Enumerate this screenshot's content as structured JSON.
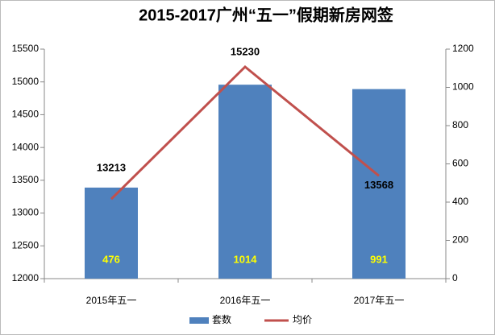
{
  "chart_data": {
    "type": "bar_line",
    "title": "2015-2017广州“五一”假期新房网签",
    "categories": [
      "2015年五一",
      "2016年五一",
      "2017年五一"
    ],
    "series": [
      {
        "name": "套数",
        "type": "bar",
        "axis": "y2",
        "color": "#4f81bd",
        "label_color": "#ffff00",
        "values": [
          476,
          1014,
          991
        ]
      },
      {
        "name": "均价",
        "type": "line",
        "axis": "y",
        "color": "#c0504d",
        "values": [
          13213,
          15230,
          13568
        ]
      }
    ],
    "ylim": [
      12000,
      15500
    ],
    "yticks": [
      12000,
      12500,
      13000,
      13500,
      14000,
      14500,
      15000,
      15500
    ],
    "y2lim": [
      0,
      1200
    ],
    "y2ticks": [
      0,
      200,
      400,
      600,
      800,
      1000,
      1200
    ],
    "grid": false,
    "legend": "bottom"
  }
}
